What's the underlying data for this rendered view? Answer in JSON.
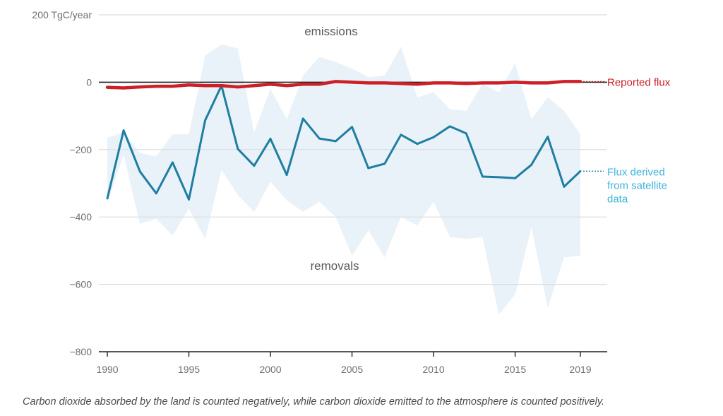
{
  "chart_data": {
    "type": "line",
    "y_unit_label": "200 TgC/year",
    "ylim": [
      -800,
      200
    ],
    "y_ticks": [
      -800,
      -600,
      -400,
      -200,
      0
    ],
    "y_tick_labels": [
      "−800",
      "−600",
      "−400",
      "−200",
      "0"
    ],
    "x_ticks": [
      1990,
      1995,
      2000,
      2005,
      2010,
      2015,
      2019
    ],
    "xlim": [
      1989.5,
      2021.5
    ],
    "grid": true,
    "annotations": {
      "emissions": "emissions",
      "removals": "removals"
    },
    "series": [
      {
        "name": "Reported flux",
        "color": "#cc1f27",
        "x": [
          1990,
          1991,
          1992,
          1993,
          1994,
          1995,
          1996,
          1997,
          1998,
          1999,
          2000,
          2001,
          2002,
          2003,
          2004,
          2005,
          2006,
          2007,
          2008,
          2009,
          2010,
          2011,
          2012,
          2013,
          2014,
          2015,
          2016,
          2017,
          2018,
          2019
        ],
        "values": [
          -15,
          -17,
          -14,
          -12,
          -12,
          -8,
          -10,
          -10,
          -14,
          -10,
          -6,
          -10,
          -6,
          -6,
          2,
          0,
          -2,
          -2,
          -4,
          -6,
          -2,
          -2,
          -4,
          -2,
          -2,
          0,
          -2,
          -2,
          2,
          2
        ]
      },
      {
        "name": "Flux derived from satellite data",
        "label_lines": [
          "Flux derived",
          "from satellite",
          "data"
        ],
        "color": "#1f7ea1",
        "x": [
          1990,
          1991,
          1992,
          1993,
          1994,
          1995,
          1996,
          1997,
          1998,
          1999,
          2000,
          2001,
          2002,
          2003,
          2004,
          2005,
          2006,
          2007,
          2008,
          2009,
          2010,
          2011,
          2012,
          2013,
          2014,
          2015,
          2016,
          2017,
          2018,
          2019
        ],
        "values": [
          -345,
          -143,
          -265,
          -330,
          -238,
          -348,
          -113,
          -10,
          -198,
          -248,
          -168,
          -275,
          -108,
          -167,
          -175,
          -133,
          -255,
          -242,
          -156,
          -183,
          -163,
          -131,
          -152,
          -280,
          -282,
          -285,
          -245,
          -162,
          -310,
          -264
        ],
        "band_color": "#e9f2f8",
        "band_upper": [
          -165,
          -148,
          -210,
          -220,
          -155,
          -155,
          80,
          112,
          100,
          -150,
          -20,
          -110,
          20,
          75,
          60,
          40,
          15,
          20,
          105,
          -45,
          -30,
          -80,
          -85,
          -5,
          -30,
          55,
          -110,
          -45,
          -85,
          -155
        ],
        "band_lower": [
          -360,
          -215,
          -420,
          -405,
          -455,
          -375,
          -465,
          -260,
          -335,
          -385,
          -295,
          -350,
          -385,
          -355,
          -400,
          -515,
          -440,
          -520,
          -400,
          -425,
          -355,
          -460,
          -465,
          -460,
          -690,
          -630,
          -430,
          -670,
          -520,
          -515
        ]
      }
    ]
  },
  "caption": "Carbon dioxide absorbed by the land is counted negatively, while carbon dioxide emitted to the atmosphere is counted positively."
}
